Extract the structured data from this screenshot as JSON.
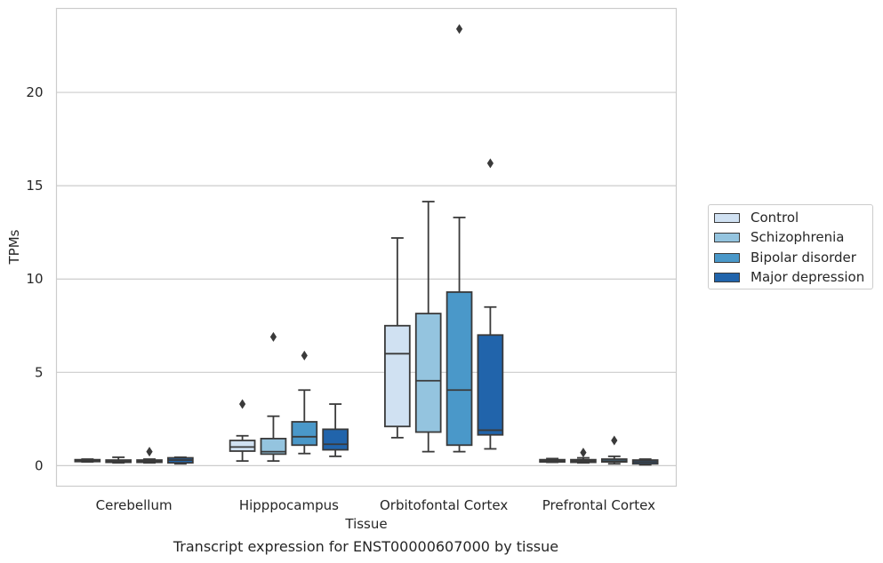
{
  "caption": "Transcript expression for ENST00000607000 by tissue",
  "chart_data": {
    "type": "box",
    "title": "",
    "xlabel": "Tissue",
    "ylabel": "TPMs",
    "ylim": [
      -1.1,
      24.5
    ],
    "yticks": [
      0,
      5,
      10,
      15,
      20
    ],
    "grid": "horizontal",
    "legend_position": "right",
    "categories": [
      "Cerebellum",
      "Hipppocampus",
      "Orbitofontal Cortex",
      "Prefrontal Cortex"
    ],
    "series": [
      {
        "name": "Control",
        "color": "#d0e1f2",
        "boxes": [
          {
            "whislo": 0.2,
            "q1": 0.22,
            "med": 0.27,
            "q3": 0.32,
            "whishi": 0.35,
            "fliers": []
          },
          {
            "whislo": 0.25,
            "q1": 0.78,
            "med": 1.0,
            "q3": 1.35,
            "whishi": 1.6,
            "fliers": [
              3.3
            ]
          },
          {
            "whislo": 1.5,
            "q1": 2.1,
            "med": 6.0,
            "q3": 7.5,
            "whishi": 12.2,
            "fliers": []
          },
          {
            "whislo": 0.18,
            "q1": 0.2,
            "med": 0.25,
            "q3": 0.32,
            "whishi": 0.38,
            "fliers": []
          }
        ]
      },
      {
        "name": "Schizophrenia",
        "color": "#94c4df",
        "boxes": [
          {
            "whislo": 0.15,
            "q1": 0.18,
            "med": 0.24,
            "q3": 0.3,
            "whishi": 0.45,
            "fliers": []
          },
          {
            "whislo": 0.25,
            "q1": 0.62,
            "med": 0.75,
            "q3": 1.45,
            "whishi": 2.65,
            "fliers": [
              6.9
            ]
          },
          {
            "whislo": 0.75,
            "q1": 1.8,
            "med": 4.55,
            "q3": 8.15,
            "whishi": 14.15,
            "fliers": []
          },
          {
            "whislo": 0.15,
            "q1": 0.18,
            "med": 0.25,
            "q3": 0.32,
            "whishi": 0.42,
            "fliers": [
              0.7
            ]
          }
        ]
      },
      {
        "name": "Bipolar disorder",
        "color": "#4a98c9",
        "boxes": [
          {
            "whislo": 0.15,
            "q1": 0.18,
            "med": 0.23,
            "q3": 0.3,
            "whishi": 0.35,
            "fliers": [
              0.75
            ]
          },
          {
            "whislo": 0.65,
            "q1": 1.1,
            "med": 1.55,
            "q3": 2.35,
            "whishi": 4.05,
            "fliers": [
              5.9
            ]
          },
          {
            "whislo": 0.75,
            "q1": 1.1,
            "med": 4.05,
            "q3": 9.3,
            "whishi": 13.3,
            "fliers": [
              23.4
            ]
          },
          {
            "whislo": 0.1,
            "q1": 0.2,
            "med": 0.25,
            "q3": 0.35,
            "whishi": 0.5,
            "fliers": [
              1.35
            ]
          }
        ]
      },
      {
        "name": "Major depression",
        "color": "#2164ab",
        "boxes": [
          {
            "whislo": 0.1,
            "q1": 0.15,
            "med": 0.3,
            "q3": 0.42,
            "whishi": 0.45,
            "fliers": []
          },
          {
            "whislo": 0.5,
            "q1": 0.85,
            "med": 1.15,
            "q3": 1.95,
            "whishi": 3.3,
            "fliers": []
          },
          {
            "whislo": 0.9,
            "q1": 1.65,
            "med": 1.9,
            "q3": 7.0,
            "whishi": 8.5,
            "fliers": [
              16.2
            ]
          },
          {
            "whislo": 0.05,
            "q1": 0.1,
            "med": 0.2,
            "q3": 0.3,
            "whishi": 0.35,
            "fliers": []
          }
        ]
      }
    ]
  }
}
